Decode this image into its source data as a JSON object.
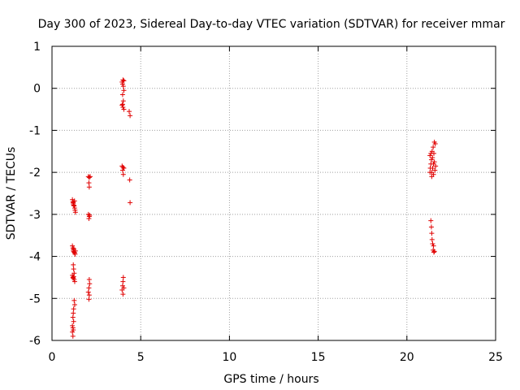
{
  "chart_data": {
    "type": "scatter",
    "title": "Day 300 of 2023, Sidereal Day-to-day VTEC variation (SDTVAR) for receiver mmar",
    "xlabel": "GPS time / hours",
    "ylabel": "SDTVAR / TECUs",
    "xlim": [
      0,
      25
    ],
    "ylim": [
      -6,
      1
    ],
    "xticks": [
      0,
      5,
      10,
      15,
      20,
      25
    ],
    "yticks": [
      -6,
      -5,
      -4,
      -3,
      -2,
      -1,
      0,
      1
    ],
    "xtick_labels": [
      "0",
      "5",
      "10",
      "15",
      "20",
      "25"
    ],
    "ytick_labels": [
      "-6",
      "-5",
      "-4",
      "-3",
      "-2",
      "-1",
      "0",
      "1"
    ],
    "grid": true,
    "marker": "+",
    "colors": {
      "points": "#e00000",
      "grid": "#a0a0a0",
      "axis": "#000000"
    },
    "series": [
      {
        "name": "SDTVAR",
        "points": [
          [
            1.15,
            -2.65
          ],
          [
            1.18,
            -2.7
          ],
          [
            1.2,
            -2.75
          ],
          [
            1.22,
            -2.78
          ],
          [
            1.25,
            -2.8
          ],
          [
            1.28,
            -2.85
          ],
          [
            1.3,
            -2.9
          ],
          [
            1.32,
            -2.95
          ],
          [
            1.2,
            -2.72
          ],
          [
            1.27,
            -2.68
          ],
          [
            1.15,
            -3.75
          ],
          [
            1.18,
            -3.8
          ],
          [
            1.2,
            -3.85
          ],
          [
            1.22,
            -3.88
          ],
          [
            1.25,
            -3.9
          ],
          [
            1.28,
            -3.92
          ],
          [
            1.3,
            -3.95
          ],
          [
            1.23,
            -3.82
          ],
          [
            1.32,
            -3.87
          ],
          [
            1.2,
            -4.2
          ],
          [
            1.22,
            -4.3
          ],
          [
            1.25,
            -4.4
          ],
          [
            1.15,
            -4.45
          ],
          [
            1.18,
            -4.5
          ],
          [
            1.2,
            -4.52
          ],
          [
            1.25,
            -4.55
          ],
          [
            1.28,
            -4.6
          ],
          [
            1.22,
            -4.48
          ],
          [
            1.25,
            -5.05
          ],
          [
            1.28,
            -5.15
          ],
          [
            1.22,
            -5.25
          ],
          [
            1.2,
            -5.35
          ],
          [
            1.18,
            -5.45
          ],
          [
            1.22,
            -5.55
          ],
          [
            1.15,
            -5.65
          ],
          [
            1.18,
            -5.7
          ],
          [
            1.2,
            -5.75
          ],
          [
            1.15,
            -5.8
          ],
          [
            1.18,
            -5.9
          ],
          [
            2.05,
            -2.1
          ],
          [
            2.1,
            -2.12
          ],
          [
            2.15,
            -2.1
          ],
          [
            2.08,
            -2.25
          ],
          [
            2.1,
            -2.35
          ],
          [
            2.05,
            -3.0
          ],
          [
            2.1,
            -3.05
          ],
          [
            2.12,
            -3.02
          ],
          [
            2.08,
            -3.1
          ],
          [
            2.1,
            -4.55
          ],
          [
            2.12,
            -4.65
          ],
          [
            2.08,
            -4.75
          ],
          [
            2.05,
            -4.85
          ],
          [
            2.1,
            -4.92
          ],
          [
            2.08,
            -5.02
          ],
          [
            3.95,
            0.15
          ],
          [
            4.0,
            0.2
          ],
          [
            4.05,
            0.18
          ],
          [
            3.98,
            0.1
          ],
          [
            4.02,
            0.05
          ],
          [
            4.05,
            -0.05
          ],
          [
            3.98,
            -0.15
          ],
          [
            4.02,
            -0.3
          ],
          [
            3.95,
            -0.4
          ],
          [
            4.0,
            -0.45
          ],
          [
            4.05,
            -0.5
          ],
          [
            3.98,
            -0.38
          ],
          [
            4.35,
            -0.55
          ],
          [
            4.4,
            -0.65
          ],
          [
            3.95,
            -1.85
          ],
          [
            4.0,
            -1.88
          ],
          [
            4.05,
            -1.9
          ],
          [
            3.98,
            -1.95
          ],
          [
            4.02,
            -2.05
          ],
          [
            4.38,
            -2.18
          ],
          [
            4.4,
            -2.72
          ],
          [
            4.02,
            -4.5
          ],
          [
            4.0,
            -4.6
          ],
          [
            3.98,
            -4.7
          ],
          [
            4.05,
            -4.75
          ],
          [
            3.95,
            -4.8
          ],
          [
            4.0,
            -4.9
          ],
          [
            21.3,
            -1.6
          ],
          [
            21.35,
            -1.8
          ],
          [
            21.3,
            -2.0
          ],
          [
            21.4,
            -2.1
          ],
          [
            21.38,
            -1.7
          ],
          [
            21.42,
            -1.5
          ],
          [
            21.45,
            -1.9
          ],
          [
            21.5,
            -2.05
          ],
          [
            21.48,
            -1.4
          ],
          [
            21.52,
            -1.55
          ],
          [
            21.55,
            -1.75
          ],
          [
            21.58,
            -1.95
          ],
          [
            21.55,
            -1.28
          ],
          [
            21.6,
            -1.32
          ],
          [
            21.62,
            -1.85
          ],
          [
            21.35,
            -1.55
          ],
          [
            21.44,
            -1.65
          ],
          [
            21.4,
            -2.0
          ],
          [
            21.32,
            -1.9
          ],
          [
            21.5,
            -1.8
          ],
          [
            21.35,
            -3.15
          ],
          [
            21.38,
            -3.3
          ],
          [
            21.4,
            -3.45
          ],
          [
            21.42,
            -3.6
          ],
          [
            21.45,
            -3.7
          ],
          [
            21.5,
            -3.75
          ],
          [
            21.48,
            -3.85
          ],
          [
            21.52,
            -3.9
          ],
          [
            21.55,
            -3.88
          ]
        ]
      }
    ]
  }
}
